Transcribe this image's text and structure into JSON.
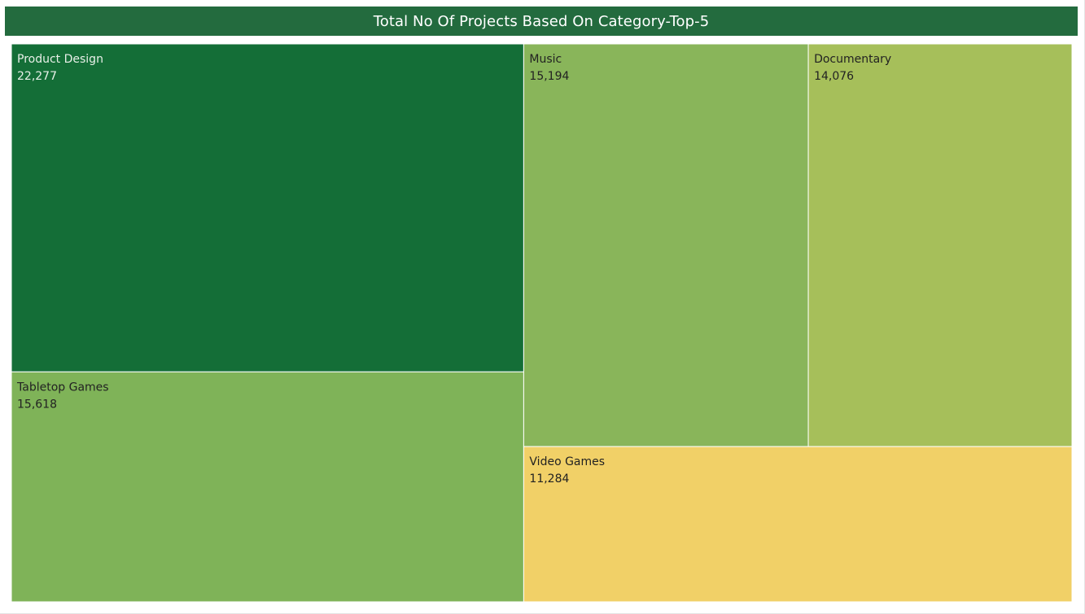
{
  "chart_data": {
    "type": "treemap",
    "title": "Total No Of Projects Based On Category-Top-5",
    "categories": [
      "Product Design",
      "Tabletop Games",
      "Music",
      "Documentary",
      "Video Games"
    ],
    "values": [
      22277,
      15618,
      15194,
      14076,
      11284
    ],
    "value_labels": [
      "22,277",
      "15,618",
      "15,194",
      "14,076",
      "11,284"
    ],
    "colors": [
      "#146e37",
      "#7fb358",
      "#89b55a",
      "#a6bf5a",
      "#f1d067"
    ],
    "label_colors": [
      "#e8f0e8",
      "#222222",
      "#222222",
      "#222222",
      "#222222"
    ],
    "legend": "none",
    "grid": false
  }
}
